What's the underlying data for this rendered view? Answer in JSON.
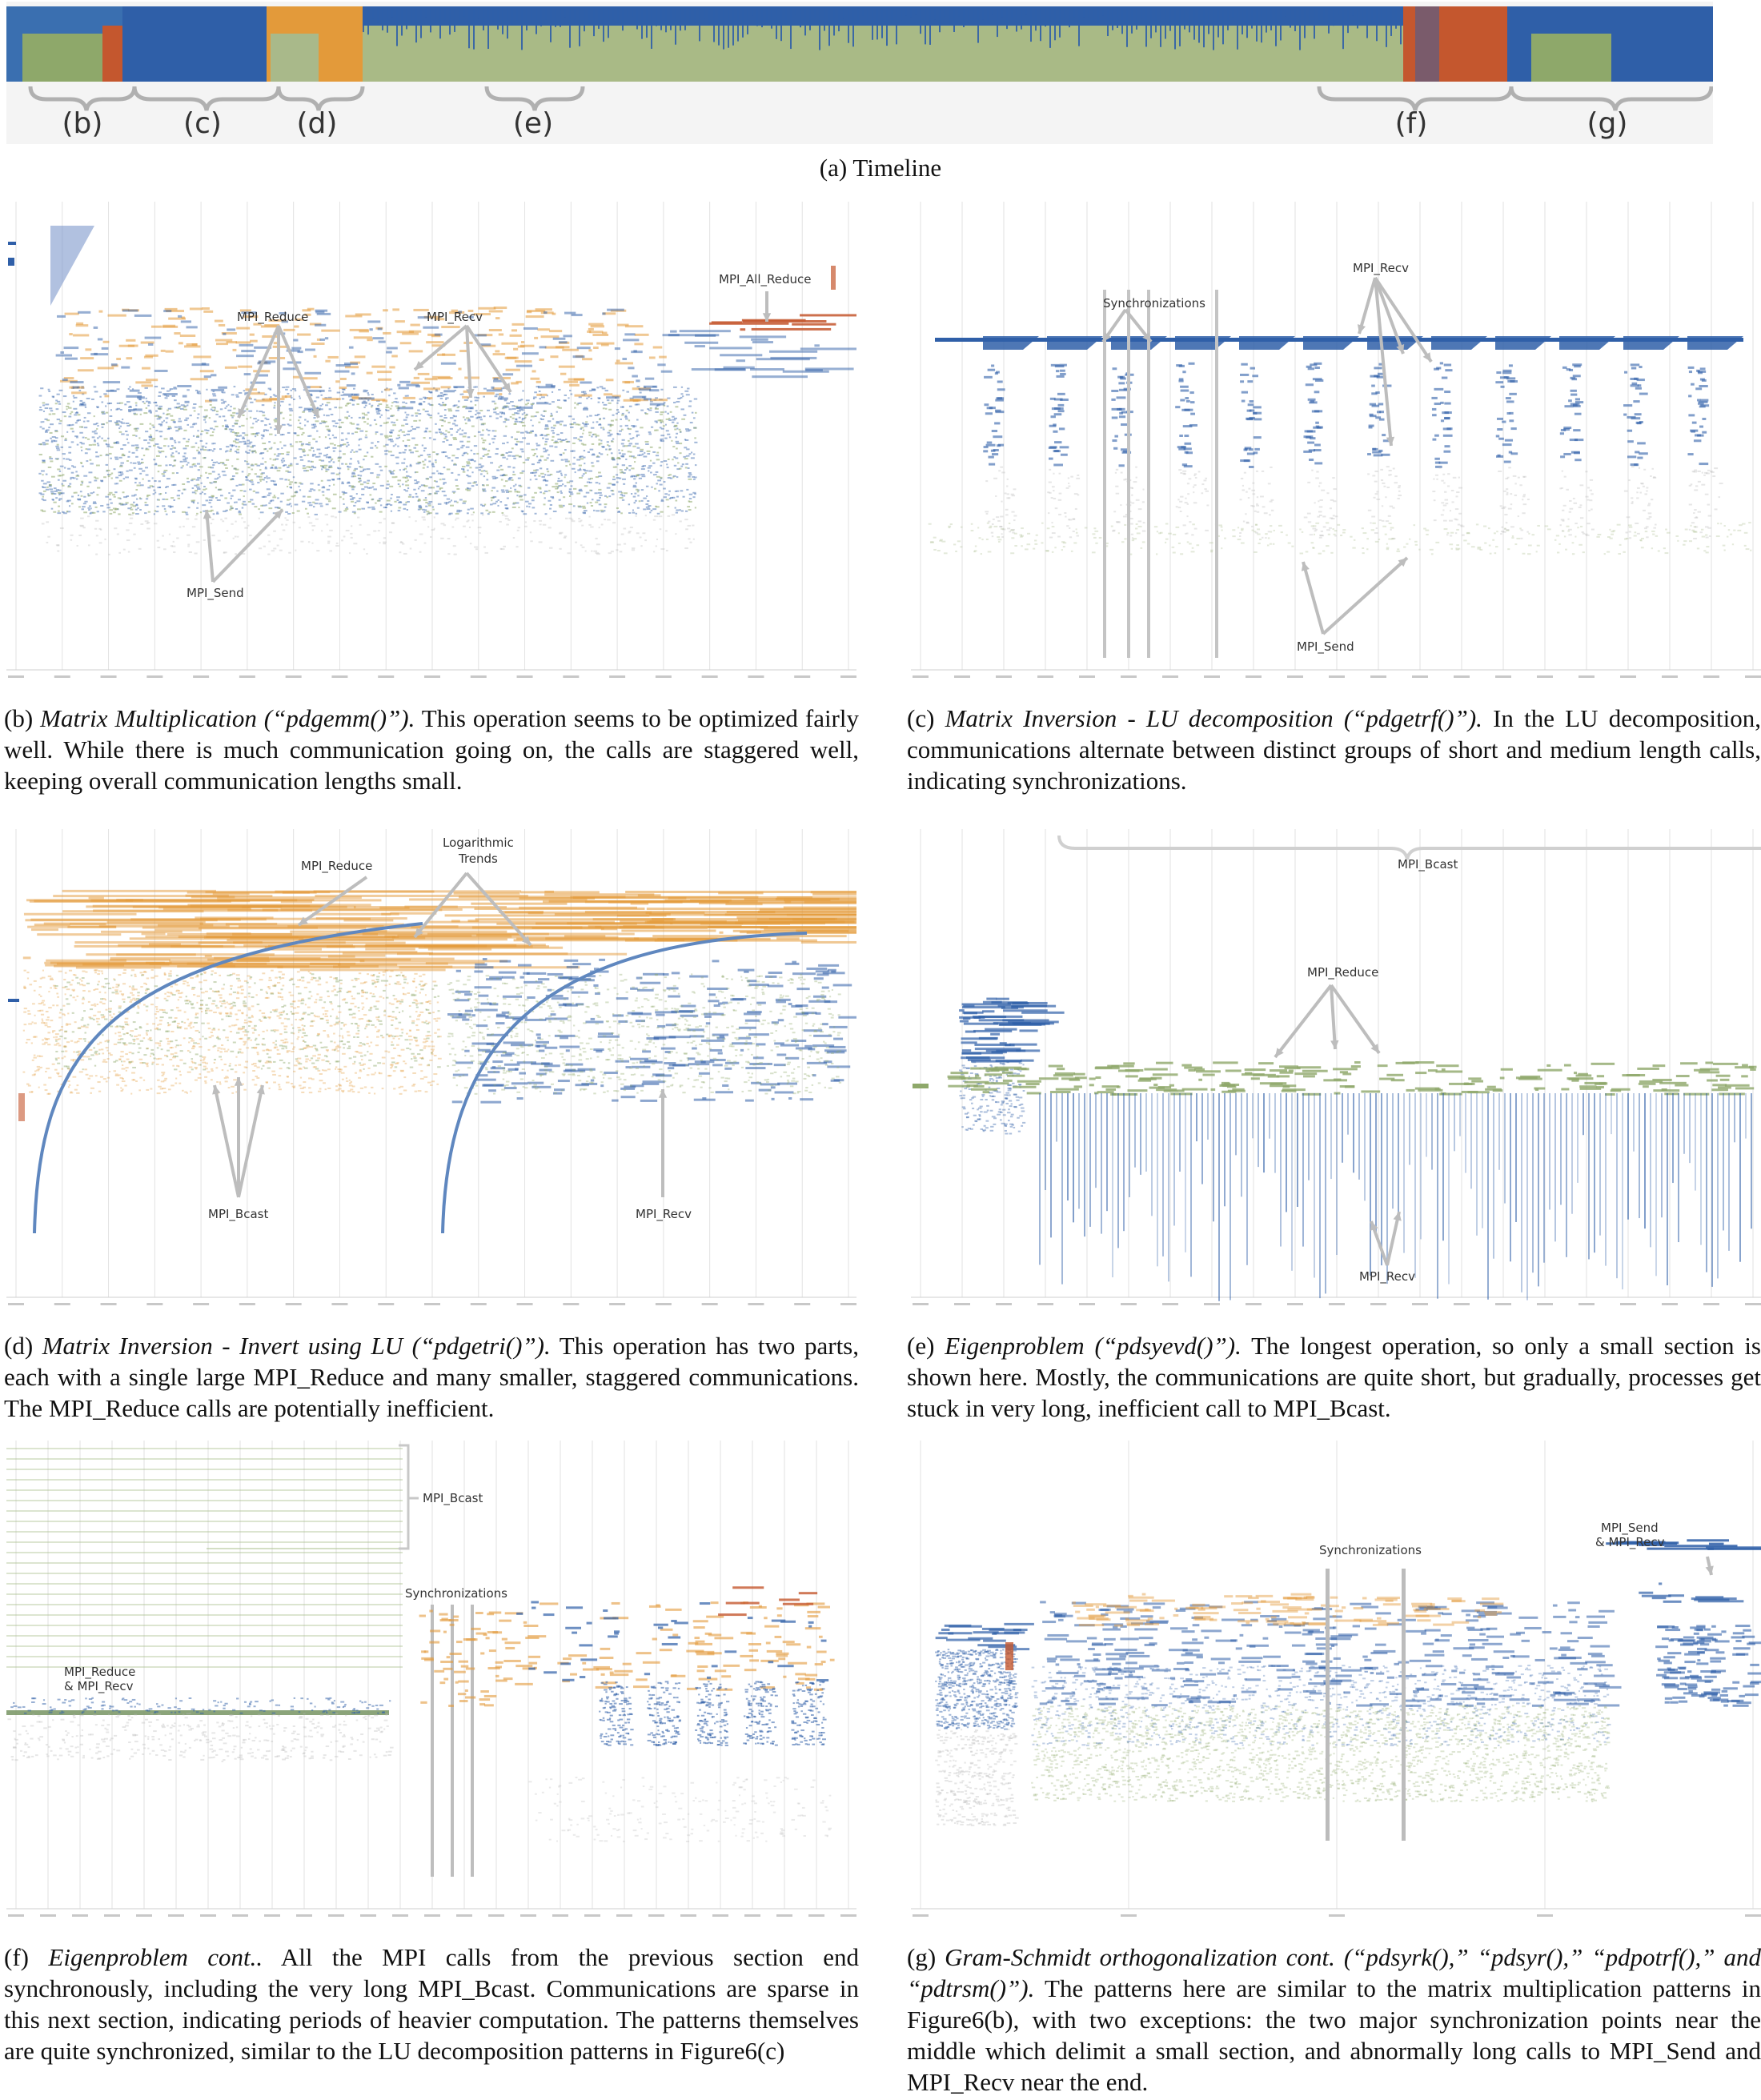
{
  "timeline": {
    "caption": "(a) Timeline",
    "braces": [
      "(b)",
      "(c)",
      "(d)",
      "(e)",
      "(f)",
      "(g)"
    ]
  },
  "panels": {
    "b": {
      "labels": {
        "reduce": "MPI_Reduce",
        "recv": "MPI_Recv",
        "allreduce": "MPI_All_Reduce",
        "send": "MPI_Send"
      },
      "caption_prefix": "(b) ",
      "caption_title": "Matrix Multiplication (“pdgemm()”).",
      "caption_body": " This operation seems to be optimized fairly well. While there is much communication going on, the calls are staggered well, keeping overall communication lengths small."
    },
    "c": {
      "labels": {
        "sync": "Synchronizations",
        "recv": "MPI_Recv",
        "send": "MPI_Send"
      },
      "caption_prefix": "(c) ",
      "caption_title": "Matrix Inversion - LU decomposition (“pdgetrf()”).",
      "caption_body": " In the LU decomposition, communications alternate between distinct groups of short and medium length calls, indicating synchronizations."
    },
    "d": {
      "labels": {
        "reduce": "MPI_Reduce",
        "trends1": "Logarithmic",
        "trends2": "Trends",
        "bcast": "MPI_Bcast",
        "recv": "MPI_Recv"
      },
      "caption_prefix": "(d) ",
      "caption_title": "Matrix Inversion - Invert using LU (“pdgetri()”).",
      "caption_body": " This operation has two parts, each with a single large MPI_Reduce and many smaller, staggered communications. The MPI_Reduce calls are potentially inefficient."
    },
    "e": {
      "labels": {
        "bcast": "MPI_Bcast",
        "reduce": "MPI_Reduce",
        "recv": "MPI_Recv"
      },
      "caption_prefix": "(e) ",
      "caption_title": "Eigenproblem (“pdsyevd()”).",
      "caption_body": " The longest operation, so only a small section is shown here. Mostly, the communications are quite short, but gradually, processes get stuck in very long, inefficient call to MPI_Bcast."
    },
    "f": {
      "labels": {
        "bcast": "MPI_Bcast",
        "sync": "Synchronizations",
        "reduce1": "MPI_Reduce",
        "reduce2": "& MPI_Recv"
      },
      "caption_prefix": "(f) ",
      "caption_title": "Eigenproblem cont..",
      "caption_body": " All the MPI calls from the previous section end synchronously, including the very long MPI_Bcast. Communications are sparse in this next section, indicating periods of heavier computation. The patterns themselves are quite synchronized, similar to the LU decomposition patterns in Figure6(c)"
    },
    "g": {
      "labels": {
        "sync": "Synchronizations",
        "send1": "MPI_Send",
        "send2": "& MPI_Recv"
      },
      "caption_prefix": "(g) ",
      "caption_title": "Gram-Schmidt orthogonalization cont. (“pdsyrk(),” “pdsyr(),” “pdpotrf(),” and “pdtrsm()”).",
      "caption_body": " The patterns here are similar to the matrix multiplication patterns in Figure6(b), with two exceptions: the two major synchronization points near the middle which delimit a small section, and abnormally long calls to MPI_Send and MPI_Recv near the end."
    }
  },
  "colors": {
    "blue": "#2f5fa8",
    "green": "#8ea86a",
    "orange": "#e39a3a",
    "red": "#c4572e",
    "gray": "#b8b8b8"
  }
}
